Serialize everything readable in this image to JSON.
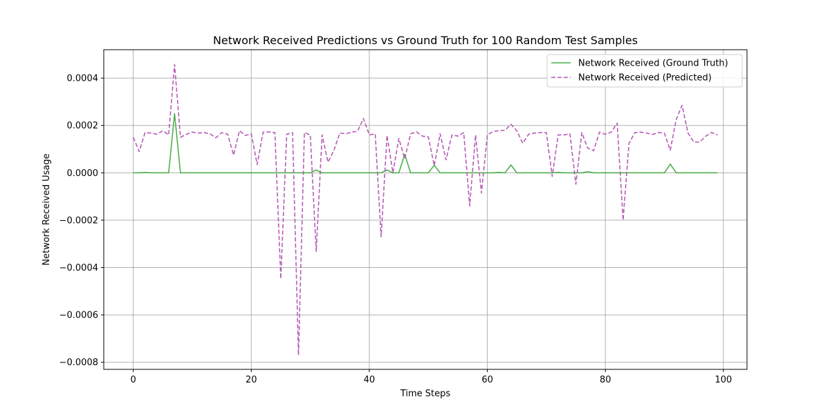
{
  "chart_data": {
    "type": "line",
    "title": "Network Received Predictions vs Ground Truth for 100 Random Test Samples",
    "xlabel": "Time Steps",
    "ylabel": "Network Received Usage",
    "xlim": [
      -5,
      104
    ],
    "ylim": [
      -0.00083,
      0.00052
    ],
    "xticks": [
      0,
      20,
      40,
      60,
      80,
      100
    ],
    "xtick_labels": [
      "0",
      "20",
      "40",
      "60",
      "80",
      "100"
    ],
    "yticks": [
      -0.0008,
      -0.0006,
      -0.0004,
      -0.0002,
      0.0,
      0.0002,
      0.0004
    ],
    "ytick_labels": [
      "−0.0008",
      "−0.0006",
      "−0.0004",
      "−0.0002",
      "0.0000",
      "0.0002",
      "0.0004"
    ],
    "grid": true,
    "legend_position": "top-right",
    "series": [
      {
        "name": "Network Received (Ground Truth)",
        "color": "#4daf4a",
        "dash": "solid",
        "values": [
          0.0,
          0.0,
          2e-06,
          0.0,
          0.0,
          0.0,
          0.0,
          0.00025,
          0.0,
          0.0,
          0.0,
          0.0,
          0.0,
          0.0,
          0.0,
          0.0,
          0.0,
          0.0,
          0.0,
          0.0,
          0.0,
          0.0,
          0.0,
          0.0,
          0.0,
          0.0,
          0.0,
          0.0,
          0.0,
          0.0,
          0.0,
          1.2e-05,
          0.0,
          0.0,
          0.0,
          0.0,
          0.0,
          0.0,
          0.0,
          0.0,
          0.0,
          0.0,
          0.0,
          1.2e-05,
          0.0,
          0.0,
          7.8e-05,
          0.0,
          0.0,
          0.0,
          0.0,
          3.2e-05,
          0.0,
          0.0,
          0.0,
          0.0,
          0.0,
          0.0,
          0.0,
          0.0,
          0.0,
          0.0,
          2e-06,
          0.0,
          3.3e-05,
          0.0,
          0.0,
          0.0,
          0.0,
          0.0,
          0.0,
          0.0,
          2e-06,
          0.0,
          0.0,
          0.0,
          0.0,
          5e-06,
          0.0,
          0.0,
          0.0,
          0.0,
          0.0,
          0.0,
          0.0,
          0.0,
          0.0,
          0.0,
          0.0,
          0.0,
          0.0,
          3.7e-05,
          0.0,
          0.0,
          0.0,
          0.0,
          0.0,
          0.0,
          0.0,
          0.0
        ]
      },
      {
        "name": "Network Received (Predicted)",
        "color": "#b55cb5",
        "dash": "dashed",
        "values": [
          0.00015,
          9e-05,
          0.00017,
          0.000168,
          0.000163,
          0.000178,
          0.00016,
          0.000458,
          0.00015,
          0.000163,
          0.000172,
          0.000168,
          0.00017,
          0.000165,
          0.000148,
          0.00017,
          0.000163,
          7.5e-05,
          0.000178,
          0.000158,
          0.000165,
          3.5e-05,
          0.000172,
          0.000173,
          0.00017,
          -0.000447,
          0.000163,
          0.00017,
          -0.00077,
          0.00017,
          0.00016,
          -0.000332,
          0.00016,
          4.5e-05,
          9.5e-05,
          0.000168,
          0.000165,
          0.000172,
          0.000175,
          0.00023,
          0.00016,
          0.000165,
          -0.00027,
          0.000158,
          0.0,
          0.000145,
          6e-05,
          0.000165,
          0.000173,
          0.000155,
          0.000152,
          3e-05,
          0.000165,
          5.5e-05,
          0.00016,
          0.000155,
          0.00017,
          -0.00014,
          0.00016,
          -8.5e-05,
          0.00016,
          0.000175,
          0.000178,
          0.00018,
          0.000205,
          0.000178,
          0.000125,
          0.000163,
          0.000168,
          0.00017,
          0.00017,
          -1.5e-05,
          0.00016,
          0.00016,
          0.000165,
          -4.8e-05,
          0.00017,
          0.000105,
          9.3e-05,
          0.000172,
          0.000163,
          0.000172,
          0.00021,
          -0.0002,
          0.000125,
          0.00017,
          0.000172,
          0.000168,
          0.000162,
          0.00017,
          0.000168,
          9.5e-05,
          0.000225,
          0.000285,
          0.000168,
          0.00013,
          0.00013,
          0.000155,
          0.00017,
          0.00016
        ]
      }
    ]
  }
}
